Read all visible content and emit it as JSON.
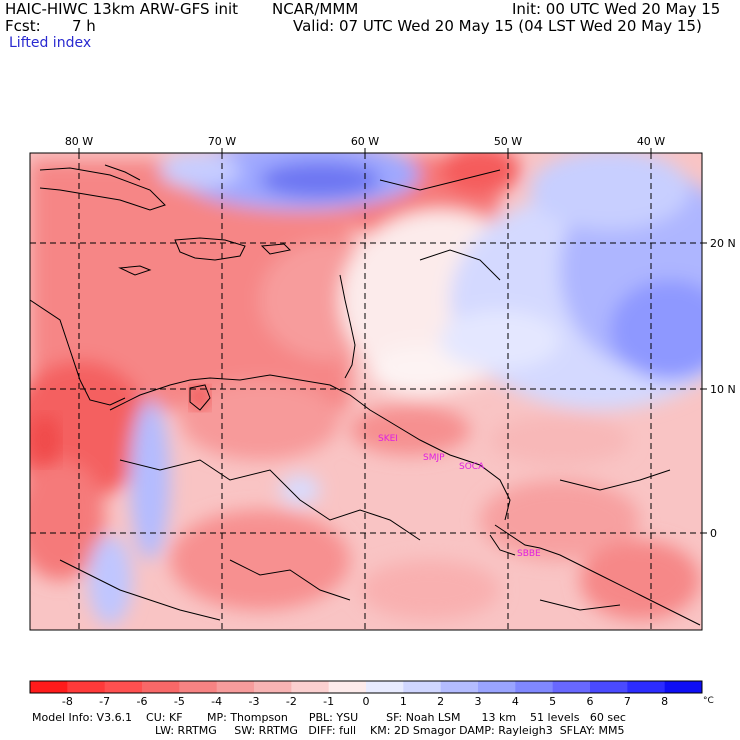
{
  "header": {
    "title": "HAIC-HIWC 13km ARW-GFS init",
    "org": "NCAR/MMM",
    "init": "Init: 00 UTC Wed 20 May 15",
    "fcst_label": "Fcst:",
    "fcst_value": "7 h",
    "valid": "Valid: 07 UTC Wed 20 May 15 (04 LST Wed 20 May 15)",
    "field": "Lifted index"
  },
  "map": {
    "lon_labels": [
      "80 W",
      "70 W",
      "60 W",
      "50 W",
      "40 W"
    ],
    "lat_labels": [
      "20 N",
      "10 N",
      "0"
    ],
    "stations": [
      "SKEI",
      "SMJP",
      "SOCA",
      "SBBE"
    ]
  },
  "colorbar": {
    "ticks": [
      "-8",
      "-7",
      "-6",
      "-5",
      "-4",
      "-3",
      "-2",
      "-1",
      "0",
      "1",
      "2",
      "3",
      "4",
      "5",
      "6",
      "7",
      "8"
    ],
    "unit": "°C",
    "colors": [
      "#ff1b1b",
      "#ff3a3a",
      "#ff5050",
      "#f86868",
      "#f78383",
      "#f79c9c",
      "#f8b4b4",
      "#fbd0d0",
      "#fdebeb",
      "#e8ebff",
      "#d0d6ff",
      "#b4bcff",
      "#9aa4ff",
      "#8088ff",
      "#6868ff",
      "#4a4aff",
      "#2c2cff",
      "#0e0ef5"
    ]
  },
  "footer": {
    "line1": "Model Info: V3.6.1    CU: KF       MP: Thompson      PBL: YSU        SF: Noah LSM      13 km    51 levels   60 sec",
    "line2": "LW: RRTMG     SW: RRTMG   DIFF: full    KM: 2D Smagor DAMP: Rayleigh3  SFLAY: MM5"
  }
}
